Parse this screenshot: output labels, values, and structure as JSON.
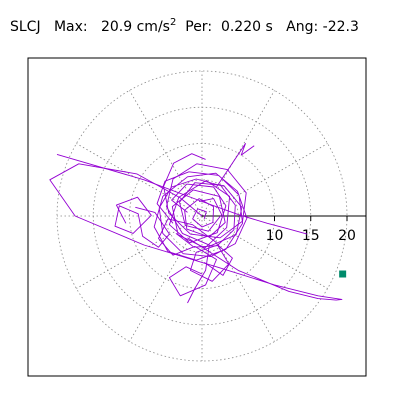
{
  "header": {
    "station": "SLCJ",
    "max_label": "Max:",
    "max_value": "20.9",
    "max_unit": "cm/s",
    "max_unit_exp": "2",
    "per_label": "Per:",
    "per_value": "0.220 s",
    "ang_label": "Ang:",
    "ang_value": "-22.3"
  },
  "chart_data": {
    "type": "polar-particle-motion",
    "title": "SLCJ Max: 20.9 cm/s2 Per: 0.220 s Ang: -22.3",
    "radial_ticks": [
      10,
      15,
      20
    ],
    "ring_radii": [
      5,
      10,
      15,
      20
    ],
    "spoke_angles_deg": [
      0,
      30,
      60,
      90,
      120,
      150,
      180,
      210,
      240,
      270,
      300,
      330
    ],
    "max_radius": 20.9,
    "angle_deg": -22.3,
    "grid": true,
    "trace_color": "#9400d3",
    "marker_color": "#008b6b",
    "trace_segments": [
      [
        [
          -2.0,
          0.5
        ],
        [
          -4.2,
          2.2
        ],
        [
          -2.1,
          4.4
        ],
        [
          1.6,
          4.0
        ],
        [
          3.3,
          1.4
        ],
        [
          2.1,
          -2.3
        ],
        [
          -1.7,
          -3.7
        ],
        [
          -4.5,
          -1.2
        ],
        [
          -3.2,
          2.6
        ],
        [
          0.6,
          4.9
        ],
        [
          3.8,
          2.7
        ],
        [
          3.4,
          -1.6
        ],
        [
          0.4,
          -4.4
        ],
        [
          -3.3,
          -2.6
        ],
        [
          -4.1,
          1.3
        ],
        [
          -1.2,
          3.6
        ],
        [
          2.4,
          2.7
        ],
        [
          3.2,
          -0.9
        ],
        [
          1.0,
          -2.9
        ],
        [
          -2.1,
          -1.8
        ],
        [
          -2.4,
          0.8
        ],
        [
          -0.4,
          2.4
        ],
        [
          1.6,
          1.3
        ],
        [
          1.5,
          -0.9
        ],
        [
          0.0,
          -1.5
        ],
        [
          -1.3,
          -0.4
        ],
        [
          -0.6,
          1.0
        ],
        [
          0.6,
          0.6
        ],
        [
          0.3,
          -0.4
        ]
      ],
      [
        [
          -4.0,
          -1.0
        ],
        [
          -6.2,
          1.7
        ],
        [
          -5.1,
          4.8
        ],
        [
          -1.8,
          6.1
        ],
        [
          2.3,
          5.6
        ],
        [
          5.1,
          2.9
        ],
        [
          5.6,
          -1.0
        ],
        [
          3.3,
          -4.6
        ],
        [
          -0.8,
          -6.1
        ],
        [
          -4.7,
          -4.9
        ],
        [
          -6.6,
          -1.5
        ],
        [
          -5.4,
          2.7
        ],
        [
          -2.0,
          5.4
        ],
        [
          1.9,
          5.9
        ],
        [
          4.9,
          3.4
        ],
        [
          6.2,
          -0.3
        ],
        [
          4.6,
          -3.8
        ],
        [
          1.2,
          -5.6
        ],
        [
          -2.6,
          -5.2
        ],
        [
          -5.4,
          -2.4
        ],
        [
          -5.9,
          1.1
        ],
        [
          -4.2,
          4.0
        ],
        [
          -0.8,
          5.1
        ],
        [
          2.6,
          4.2
        ],
        [
          4.6,
          1.5
        ],
        [
          4.4,
          -1.9
        ],
        [
          2.1,
          -4.1
        ],
        [
          -1.1,
          -4.3
        ],
        [
          -3.6,
          -2.4
        ]
      ],
      [
        [
          0.5,
          7.8
        ],
        [
          -1.4,
          8.6
        ],
        [
          -3.9,
          7.3
        ],
        [
          -5.3,
          4.1
        ],
        [
          -4.6,
          0.4
        ],
        [
          -1.6,
          -2.5
        ],
        [
          2.5,
          -3.0
        ],
        [
          5.6,
          -0.7
        ],
        [
          6.1,
          3.2
        ],
        [
          3.5,
          6.4
        ],
        [
          -0.7,
          7.2
        ],
        [
          -4.0,
          5.1
        ],
        [
          -4.9,
          1.3
        ],
        [
          -2.7,
          -2.4
        ],
        [
          1.2,
          -4.1
        ],
        [
          4.7,
          -2.6
        ],
        [
          5.5,
          1.2
        ],
        [
          3.0,
          4.2
        ],
        [
          -1.0,
          4.6
        ],
        [
          -3.1,
          1.9
        ],
        [
          -2.3,
          -1.3
        ],
        [
          0.9,
          -2.1
        ],
        [
          2.7,
          0.2
        ],
        [
          1.6,
          2.4
        ],
        [
          -0.4,
          2.0
        ]
      ],
      [
        [
          0.0,
          -8.0
        ],
        [
          -2.2,
          -7.0
        ],
        [
          -4.5,
          -8.5
        ],
        [
          -3.0,
          -11.0
        ],
        [
          0.5,
          -9.5
        ],
        [
          2.0,
          -6.0
        ],
        [
          -1.0,
          -4.2
        ],
        [
          -4.0,
          -5.4
        ],
        [
          -6.0,
          -3.1
        ],
        [
          -4.7,
          -0.4
        ],
        [
          -1.3,
          -1.2
        ],
        [
          1.9,
          -3.6
        ],
        [
          3.7,
          -6.6
        ],
        [
          1.4,
          -9.0
        ],
        [
          -1.6,
          -7.5
        ],
        [
          -0.8,
          -5.0
        ],
        [
          2.2,
          -4.0
        ],
        [
          4.2,
          -5.8
        ],
        [
          2.9,
          -8.2
        ],
        [
          0.3,
          -6.4
        ]
      ],
      [
        [
          -10.5,
          -1.0
        ],
        [
          -11.8,
          1.5
        ],
        [
          -8.9,
          2.6
        ],
        [
          -7.0,
          0.1
        ],
        [
          -9.5,
          -2.4
        ],
        [
          -12.0,
          -1.4
        ],
        [
          -11.4,
          1.4
        ],
        [
          -8.8,
          0.3
        ],
        [
          -8.2,
          -2.8
        ],
        [
          -6.0,
          -4.3
        ],
        [
          -4.5,
          -2.5
        ],
        [
          -6.5,
          0.5
        ],
        [
          -9.2,
          1.2
        ]
      ],
      [
        [
          -20.0,
          8.5
        ],
        [
          -8.0,
          5.0
        ],
        [
          0.0,
          2.0
        ],
        [
          5.0,
          0.2
        ],
        [
          9.0,
          -1.0
        ],
        [
          12.0,
          -1.8
        ],
        [
          14.5,
          -2.5
        ]
      ],
      [
        [
          0.0,
          0.0
        ],
        [
          -3.0,
          2.5
        ],
        [
          -9.0,
          5.8
        ],
        [
          -17.0,
          7.2
        ],
        [
          -21.0,
          5.0
        ],
        [
          -17.5,
          0.0
        ],
        [
          -8.0,
          -4.0
        ],
        [
          2.0,
          -7.0
        ],
        [
          10.0,
          -9.5
        ],
        [
          16.0,
          -11.0
        ],
        [
          19.3,
          -11.5
        ],
        [
          18.5,
          -11.6
        ],
        [
          16.0,
          -11.4
        ],
        [
          12.0,
          -10.4
        ],
        [
          5.0,
          -7.5
        ],
        [
          -2.0,
          -3.0
        ]
      ],
      [
        [
          -2.0,
          -12.0
        ],
        [
          -1.0,
          -10.0
        ],
        [
          0.5,
          -7.5
        ],
        [
          1.0,
          -4.0
        ]
      ],
      [
        [
          2.0,
          4.0
        ],
        [
          6.0,
          10.0
        ],
        [
          5.4,
          8.4
        ],
        [
          7.2,
          9.7
        ]
      ]
    ],
    "marker_point": [
      19.4,
      -8.0
    ]
  }
}
